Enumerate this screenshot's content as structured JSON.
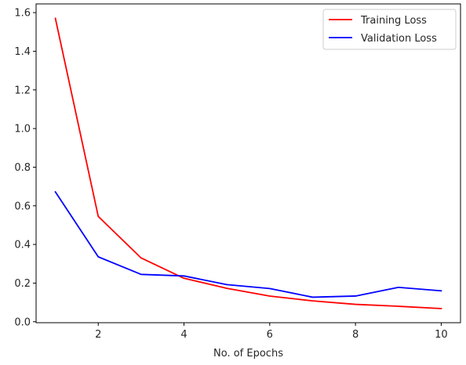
{
  "chart_data": {
    "type": "line",
    "title": "",
    "xlabel": "No. of Epochs",
    "ylabel": "",
    "x": [
      1,
      2,
      3,
      4,
      5,
      6,
      7,
      8,
      9,
      10
    ],
    "xlim": [
      0.55,
      10.45
    ],
    "ylim": [
      -0.005,
      1.645
    ],
    "xticks": [
      2,
      4,
      6,
      8,
      10
    ],
    "yticks": [
      0.0,
      0.2,
      0.4,
      0.6,
      0.8,
      1.0,
      1.2,
      1.4,
      1.6
    ],
    "grid": false,
    "legend_position": "top-right",
    "series": [
      {
        "name": "Training Loss",
        "color": "#ff0000",
        "values": [
          1.57,
          0.545,
          0.33,
          0.225,
          0.173,
          0.133,
          0.108,
          0.09,
          0.08,
          0.068
        ]
      },
      {
        "name": "Validation Loss",
        "color": "#0000ff",
        "values": [
          0.672,
          0.336,
          0.245,
          0.237,
          0.192,
          0.172,
          0.127,
          0.133,
          0.178,
          0.16
        ]
      }
    ]
  }
}
